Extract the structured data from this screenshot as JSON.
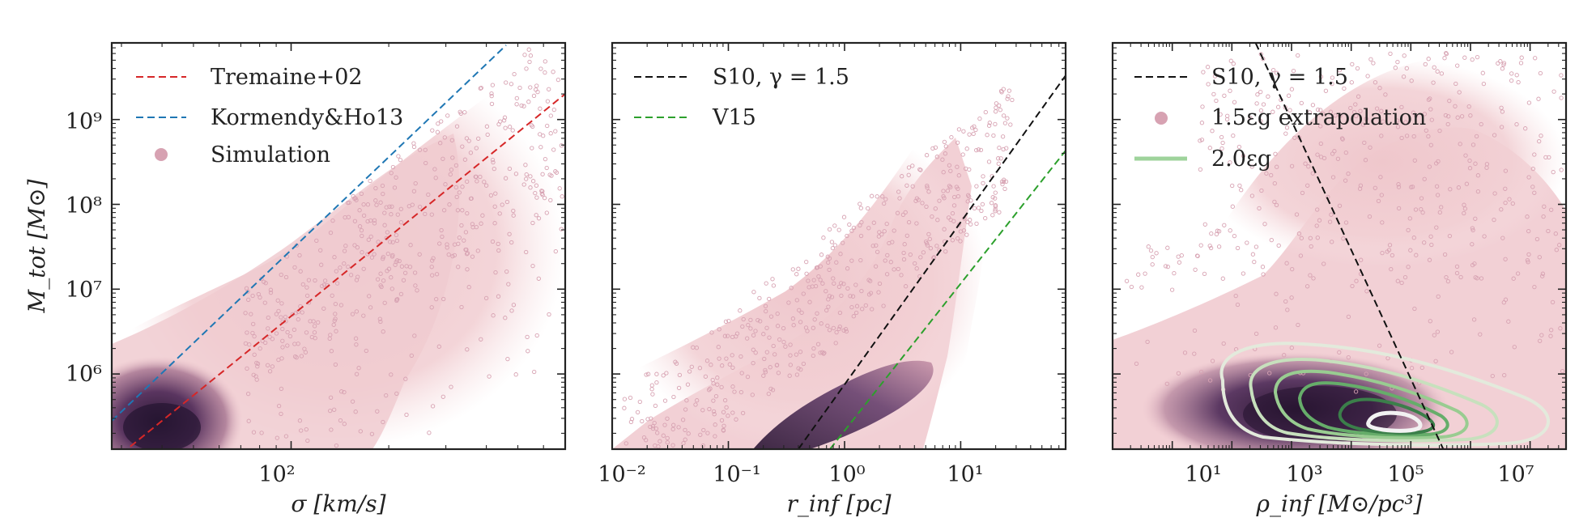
{
  "colors": {
    "hist_light": "#f2d0d4",
    "hist_mid": "#c48aa3",
    "hist_dark": "#3a1f3e",
    "scatter": "#d7a2b2",
    "tremaine": "#d62728",
    "kormendy": "#1f77b4",
    "s10": "#111111",
    "v15": "#2ca02c",
    "contour_green": "#5aa469"
  },
  "chart_data": [
    {
      "type": "scatter",
      "panel": "left",
      "xscale": "log",
      "yscale": "log",
      "xlim": [
        28,
        700
      ],
      "ylim": [
        130000,
        8000000000
      ],
      "xlabel": "σ [km/s]",
      "ylabel": "M_tot [M⊙]",
      "x_tick_labels": [
        {
          "value": 100,
          "label": "10²"
        }
      ],
      "y_tick_labels": [
        {
          "value": 1000000,
          "label": "10⁶"
        },
        {
          "value": 10000000,
          "label": "10⁷"
        },
        {
          "value": 100000000,
          "label": "10⁸"
        },
        {
          "value": 1000000000,
          "label": "10⁹"
        }
      ],
      "series": [
        {
          "name": "Tremaine+02",
          "style": "dashed",
          "color_key": "tremaine",
          "points": [
            [
              30,
              115000
            ],
            [
              700,
              2000000000
            ]
          ]
        },
        {
          "name": "Kormendy&Ho13",
          "style": "dashed",
          "color_key": "kormendy",
          "points": [
            [
              28,
              280000
            ],
            [
              460,
              7500000000
            ]
          ]
        },
        {
          "name": "Simulation",
          "style": "marker"
        }
      ],
      "legend": [
        "Tremaine+02",
        "Kormendy&Ho13",
        "Simulation"
      ],
      "legend_position": "upper-left"
    },
    {
      "type": "scatter",
      "panel": "middle",
      "xscale": "log",
      "yscale": "log",
      "xlim": [
        0.01,
        80
      ],
      "ylim": [
        130000,
        8000000000
      ],
      "xlabel": "r_inf [pc]",
      "x_tick_labels": [
        {
          "value": 0.01,
          "label": "10⁻²"
        },
        {
          "value": 0.1,
          "label": "10⁻¹"
        },
        {
          "value": 1,
          "label": "10⁰"
        },
        {
          "value": 10,
          "label": "10¹"
        }
      ],
      "series": [
        {
          "name": "S10, γ = 1.5",
          "style": "dashed",
          "color_key": "s10",
          "points": [
            [
              0.4,
              130000
            ],
            [
              80,
              3300000000
            ]
          ]
        },
        {
          "name": "V15",
          "style": "dashed",
          "color_key": "v15",
          "points": [
            [
              0.75,
              130000
            ],
            [
              80,
              430000000
            ]
          ]
        }
      ],
      "legend": [
        "S10, γ = 1.5",
        "V15"
      ],
      "legend_position": "upper-left"
    },
    {
      "type": "scatter",
      "panel": "right",
      "xscale": "log",
      "yscale": "log",
      "xlim": [
        1,
        40000000
      ],
      "ylim": [
        130000,
        8000000000
      ],
      "xlabel": "ρ_inf [M⊙/pc³]",
      "x_tick_labels": [
        {
          "value": 10,
          "label": "10¹"
        },
        {
          "value": 1000,
          "label": "10³"
        },
        {
          "value": 100000,
          "label": "10⁵"
        },
        {
          "value": 10000000,
          "label": "10⁷"
        }
      ],
      "series": [
        {
          "name": "S10, γ = 1.5",
          "style": "dashed",
          "color_key": "s10",
          "points": [
            [
              250,
              8000000000
            ],
            [
              350000,
              130000
            ]
          ]
        },
        {
          "name": "1.5ε_g extrapolation",
          "style": "marker"
        },
        {
          "name": "2.0ε_g",
          "style": "contour"
        }
      ],
      "legend": [
        "S10, γ = 1.5",
        "1.5εg extrapolation",
        "2.0εg"
      ],
      "legend_position": "upper-left"
    }
  ]
}
